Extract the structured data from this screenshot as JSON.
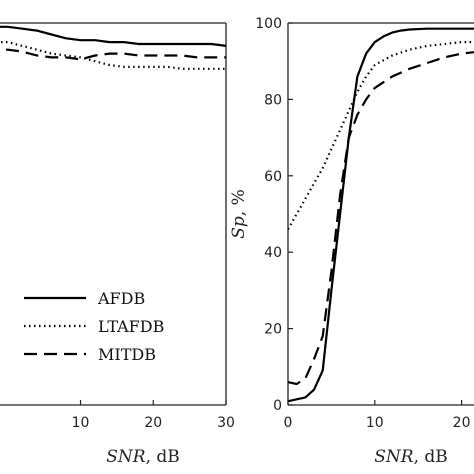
{
  "chart_data": [
    {
      "type": "line",
      "panel": "left",
      "xlabel_var": "SNR",
      "xlabel_unit": ", dB",
      "ylabel": "",
      "xlim": [
        -3,
        30
      ],
      "ylim": [
        0,
        100
      ],
      "x_ticks": [
        "10",
        "20",
        "30"
      ],
      "x_tick_values": [
        10,
        20,
        30
      ],
      "legend": {
        "placement": "bottom-left",
        "entries": [
          "AFDB",
          "LTAFDB",
          "MITDB"
        ]
      },
      "series": [
        {
          "name": "AFDB",
          "style": "solid",
          "x": [
            -3,
            0,
            2,
            4,
            6,
            8,
            10,
            12,
            14,
            16,
            18,
            20,
            22,
            24,
            26,
            28,
            30
          ],
          "y": [
            99,
            99,
            98.5,
            98,
            97,
            96,
            95.5,
            95.5,
            95,
            95,
            94.5,
            94.5,
            94.5,
            94.5,
            94.5,
            94.5,
            94
          ]
        },
        {
          "name": "LTAFDB",
          "style": "dotted",
          "x": [
            -3,
            0,
            2,
            4,
            6,
            8,
            10,
            12,
            14,
            16,
            18,
            20,
            22,
            24,
            26,
            28,
            30
          ],
          "y": [
            95,
            95,
            94,
            93,
            92,
            91.5,
            91,
            90,
            89,
            88.5,
            88.5,
            88.5,
            88.5,
            88,
            88,
            88,
            88
          ]
        },
        {
          "name": "MITDB",
          "style": "dashed",
          "x": [
            -3,
            0,
            2,
            4,
            6,
            8,
            10,
            12,
            14,
            16,
            18,
            20,
            22,
            24,
            26,
            28,
            30
          ],
          "y": [
            93,
            93,
            92.5,
            91.5,
            91,
            91,
            90.5,
            91.5,
            92,
            92,
            91.5,
            91.5,
            91.5,
            91.5,
            91,
            91,
            91
          ]
        }
      ]
    },
    {
      "type": "line",
      "panel": "right",
      "xlabel_var": "SNR",
      "xlabel_unit": ", dB",
      "ylabel_var": "Sp",
      "ylabel_unit": ", %",
      "xlim": [
        0,
        25
      ],
      "ylim": [
        0,
        100
      ],
      "x_ticks": [
        "0",
        "10",
        "20"
      ],
      "x_tick_values": [
        0,
        10,
        20
      ],
      "y_ticks": [
        "0",
        "20",
        "40",
        "60",
        "80",
        "100"
      ],
      "y_tick_values": [
        0,
        20,
        40,
        60,
        80,
        100
      ],
      "series": [
        {
          "name": "AFDB",
          "style": "solid",
          "x": [
            0,
            1,
            2,
            3,
            4,
            5,
            6,
            7,
            8,
            9,
            10,
            11,
            12,
            13,
            14,
            16,
            18,
            20,
            22,
            25
          ],
          "y": [
            1,
            1.5,
            2,
            4,
            9,
            30,
            50,
            70,
            86,
            92,
            95,
            96.5,
            97.5,
            98,
            98.3,
            98.5,
            98.5,
            98.5,
            98.5,
            98.5
          ]
        },
        {
          "name": "LTAFDB",
          "style": "dotted",
          "x": [
            0,
            1,
            2,
            3,
            4,
            5,
            6,
            7,
            8,
            9,
            10,
            12,
            14,
            16,
            18,
            20,
            22,
            25
          ],
          "y": [
            46,
            50,
            54,
            58,
            62,
            67,
            72,
            77,
            82,
            86,
            89,
            91.5,
            93,
            94,
            94.5,
            95,
            95,
            95
          ]
        },
        {
          "name": "MITDB",
          "style": "dashed",
          "x": [
            0,
            1,
            2,
            3,
            4,
            5,
            6,
            7,
            8,
            9,
            10,
            12,
            14,
            16,
            18,
            20,
            22,
            25
          ],
          "y": [
            6,
            5.5,
            7,
            12,
            18,
            35,
            55,
            70,
            76,
            80,
            83,
            86,
            88,
            89.5,
            91,
            92,
            92.5,
            93
          ]
        }
      ]
    }
  ]
}
